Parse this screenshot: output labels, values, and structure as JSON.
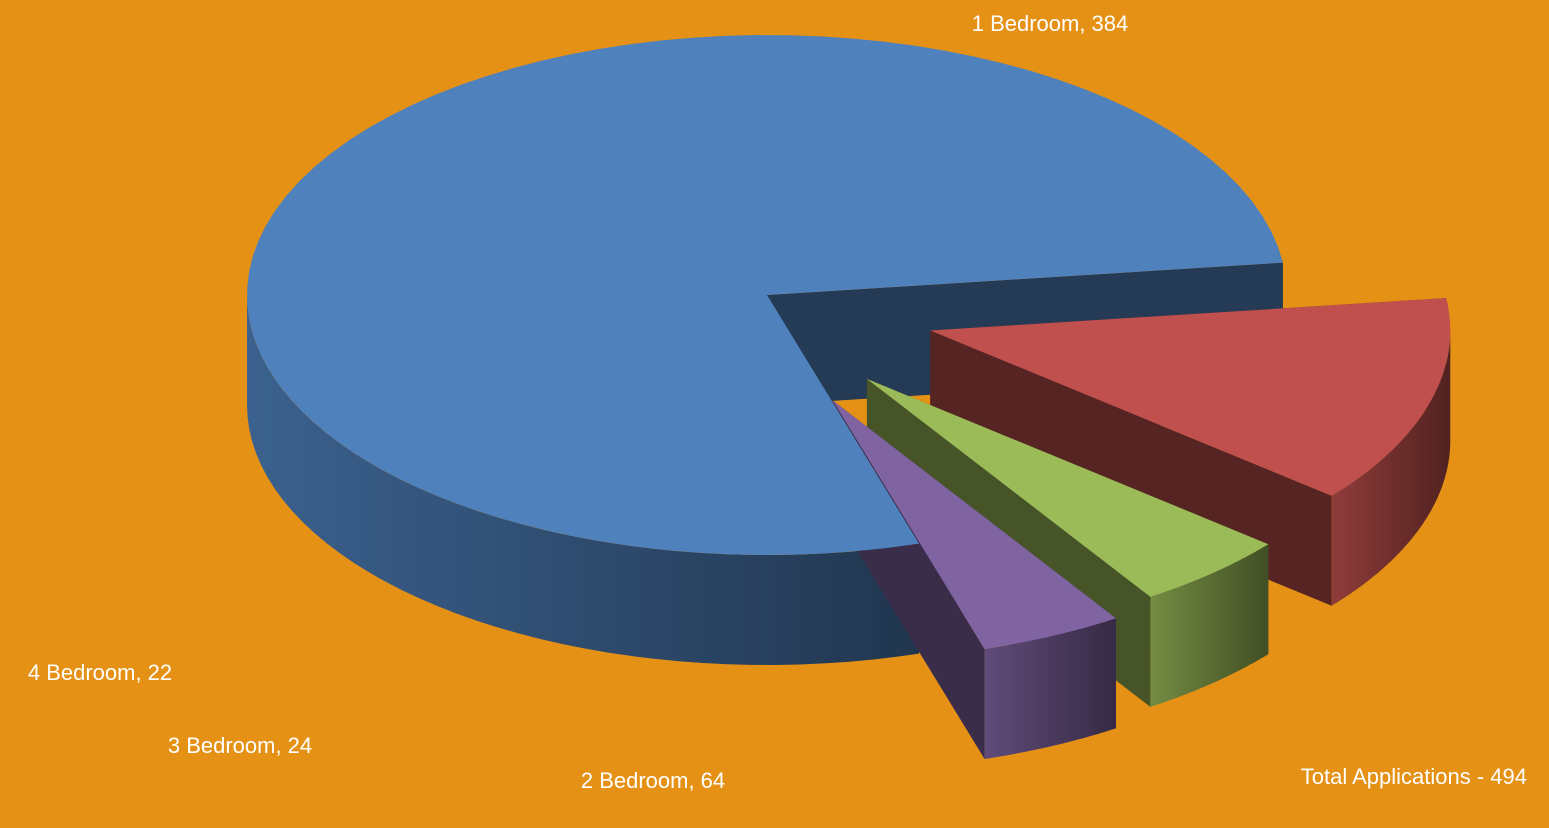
{
  "chart_data": {
    "type": "pie",
    "style": "3d-exploded",
    "slices": [
      {
        "category": "1 Bedroom",
        "value": 384,
        "label": "1 Bedroom, 384",
        "color": "#4F81BD"
      },
      {
        "category": "2 Bedroom",
        "value": 64,
        "label": "2 Bedroom, 64",
        "color": "#C0504D"
      },
      {
        "category": "3 Bedroom",
        "value": 24,
        "label": "3 Bedroom, 24",
        "color": "#9BBB59"
      },
      {
        "category": "4 Bedroom",
        "value": 22,
        "label": "4 Bedroom, 22",
        "color": "#8064A2"
      }
    ],
    "total_text": "Total Applications - 494"
  },
  "background_color": "#E59116"
}
